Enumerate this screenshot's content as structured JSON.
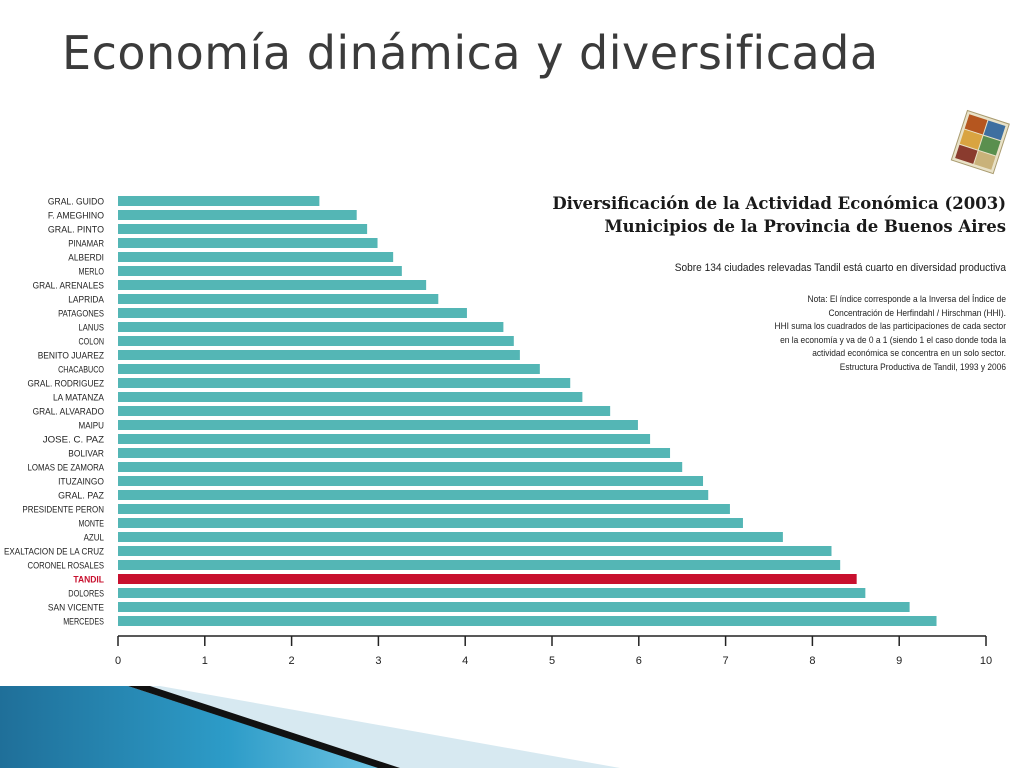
{
  "slide": {
    "title": "Economía dinámica y diversificada"
  },
  "colors": {
    "bar": "#54b6b5",
    "highlight": "#c8102e",
    "axis": "#222222"
  },
  "chart_data": {
    "type": "bar",
    "orientation": "horizontal",
    "title": "Diversificación de la Actividad Económica (2003)",
    "title_line2": "Municipios de la Provincia de Buenos Aires",
    "subtitle": "Sobre 134 ciudades relevadas Tandil está cuarto en diversidad productiva",
    "note": "Nota: El índice corresponde a la Inversa del Índice de\nConcentración de Herfindahl / Hirschman (HHI).\nHHI suma los cuadrados de las participaciones de cada sector\nen la economía y va de 0 a 1 (siendo 1 el caso donde toda la\nactividad económica se concentra en un solo sector.\nEstructura Productiva de Tandil, 1993 y 2006",
    "categories": [
      "GRAL. GUIDO",
      "F. AMEGHINO",
      "GRAL. PINTO",
      "PINAMAR",
      "ALBERDI",
      "MERLO",
      "GRAL. ARENALES",
      "LAPRIDA",
      "PATAGONES",
      "LANUS",
      "COLON",
      "BENITO JUAREZ",
      "CHACABUCO",
      "GRAL. RODRIGUEZ",
      "LA MATANZA",
      "GRAL. ALVARADO",
      "MAIPU",
      "JOSE. C. PAZ",
      "BOLIVAR",
      "LOMAS DE ZAMORA",
      "ITUZAINGO",
      "GRAL. PAZ",
      "PRESIDENTE PERON",
      "MONTE",
      "AZUL",
      "EXALTACION DE LA CRUZ",
      "CORONEL ROSALES",
      "TANDIL",
      "DOLORES",
      "SAN VICENTE",
      "MERCEDES"
    ],
    "values": [
      2.32,
      2.75,
      2.87,
      2.99,
      3.17,
      3.27,
      3.55,
      3.69,
      4.02,
      4.44,
      4.56,
      4.63,
      4.86,
      5.21,
      5.35,
      5.67,
      5.99,
      6.13,
      6.36,
      6.5,
      6.74,
      6.8,
      7.05,
      7.2,
      7.66,
      8.22,
      8.32,
      8.51,
      8.61,
      9.12,
      9.43
    ],
    "highlight": "TANDIL",
    "xlim": [
      0,
      10
    ],
    "xticks": [
      0,
      1,
      2,
      3,
      4,
      5,
      6,
      7,
      8,
      9,
      10
    ],
    "grid": false
  }
}
